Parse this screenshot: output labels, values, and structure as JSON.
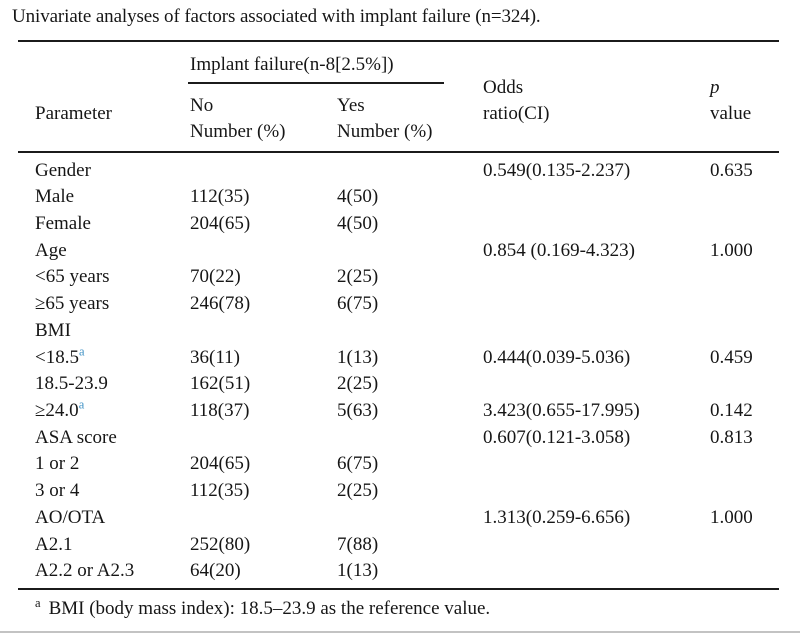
{
  "title": "Univariate analyses of factors associated with implant failure (n=324).",
  "colors": {
    "text": "#161616",
    "rule": "#1b1b1b",
    "sup_blue": "#4293c6"
  },
  "chart_data": {
    "type": "table",
    "title": "Univariate analyses of factors associated with implant failure (n=324).",
    "columns": [
      "Parameter",
      "No Number (%)",
      "Yes Number (%)",
      "Odds ratio(CI)",
      "p value"
    ],
    "span_header": "Implant failure(n-8[2.5%])"
  },
  "table": {
    "header": {
      "parameter": "Parameter",
      "span_group": "Implant failure(n-8[2.5%])",
      "no": "No\nNumber (%)",
      "yes": "Yes\nNumber (%)",
      "odds": "Odds\nratio(CI)",
      "p_line1": "p",
      "p_line2": "value"
    },
    "rows": [
      {
        "param": "Gender",
        "no": "",
        "yes": "",
        "or": "0.549(0.135-2.237)",
        "p": "0.635"
      },
      {
        "param": "Male",
        "no": "112(35)",
        "yes": "4(50)",
        "or": "",
        "p": ""
      },
      {
        "param": "Female",
        "no": "204(65)",
        "yes": "4(50)",
        "or": "",
        "p": ""
      },
      {
        "param": "Age",
        "no": "",
        "yes": "",
        "or": "0.854 (0.169-4.323)",
        "p": "1.000"
      },
      {
        "param": "<65 years",
        "no": "70(22)",
        "yes": "2(25)",
        "or": "",
        "p": ""
      },
      {
        "param": "≥65 years",
        "no": "246(78)",
        "yes": "6(75)",
        "or": "",
        "p": ""
      },
      {
        "param": "BMI",
        "no": "",
        "yes": "",
        "or": "",
        "p": ""
      },
      {
        "param": "<18.5",
        "sup": "a",
        "no": "36(11)",
        "yes": "1(13)",
        "or": "0.444(0.039-5.036)",
        "p": "0.459"
      },
      {
        "param": "18.5-23.9",
        "no": "162(51)",
        "yes": "2(25)",
        "or": "",
        "p": ""
      },
      {
        "param": "≥24.0",
        "sup": "a",
        "no": "118(37)",
        "yes": "5(63)",
        "or": "3.423(0.655-17.995)",
        "p": "0.142"
      },
      {
        "param": "ASA score",
        "no": "",
        "yes": "",
        "or": "0.607(0.121-3.058)",
        "p": "0.813"
      },
      {
        "param": "1 or 2",
        "no": "204(65)",
        "yes": "6(75)",
        "or": "",
        "p": ""
      },
      {
        "param": "3 or 4",
        "no": "112(35)",
        "yes": "2(25)",
        "or": "",
        "p": ""
      },
      {
        "param": "AO/OTA",
        "no": "",
        "yes": "",
        "or": "1.313(0.259-6.656)",
        "p": "1.000"
      },
      {
        "param": "A2.1",
        "no": "252(80)",
        "yes": "7(88)",
        "or": "",
        "p": ""
      },
      {
        "param": "A2.2 or A2.3",
        "no": "64(20)",
        "yes": "1(13)",
        "or": "",
        "p": ""
      }
    ]
  },
  "footnote": {
    "marker": "a",
    "text": "BMI (body mass index): 18.5–23.9 as the reference value."
  }
}
